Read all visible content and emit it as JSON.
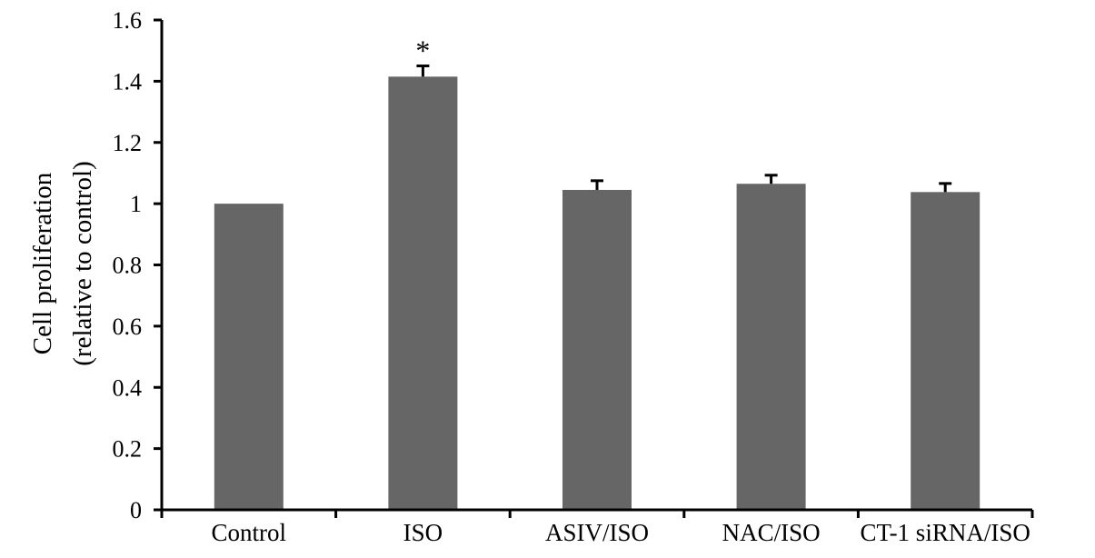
{
  "chart_data": {
    "type": "bar",
    "title": "",
    "xlabel": "",
    "ylabel_line1": "Cell proliferation",
    "ylabel_line2": "(relative to control)",
    "categories": [
      "Control",
      "ISO",
      "ASIV/ISO",
      "NAC/ISO",
      "CT-1 siRNA/ISO"
    ],
    "series": [
      {
        "values": [
          1.0,
          1.415,
          1.045,
          1.065,
          1.038
        ],
        "errors": [
          0.0,
          0.035,
          0.03,
          0.028,
          0.028
        ],
        "color": "#666666"
      }
    ],
    "annotations": [
      "",
      "*",
      "",
      "",
      ""
    ],
    "ylim": [
      0,
      1.6
    ],
    "yticks": [
      "0",
      "0.2",
      "0.4",
      "0.6",
      "0.8",
      "1",
      "1.2",
      "1.4",
      "1.6"
    ],
    "grid": false,
    "legend": "none"
  }
}
